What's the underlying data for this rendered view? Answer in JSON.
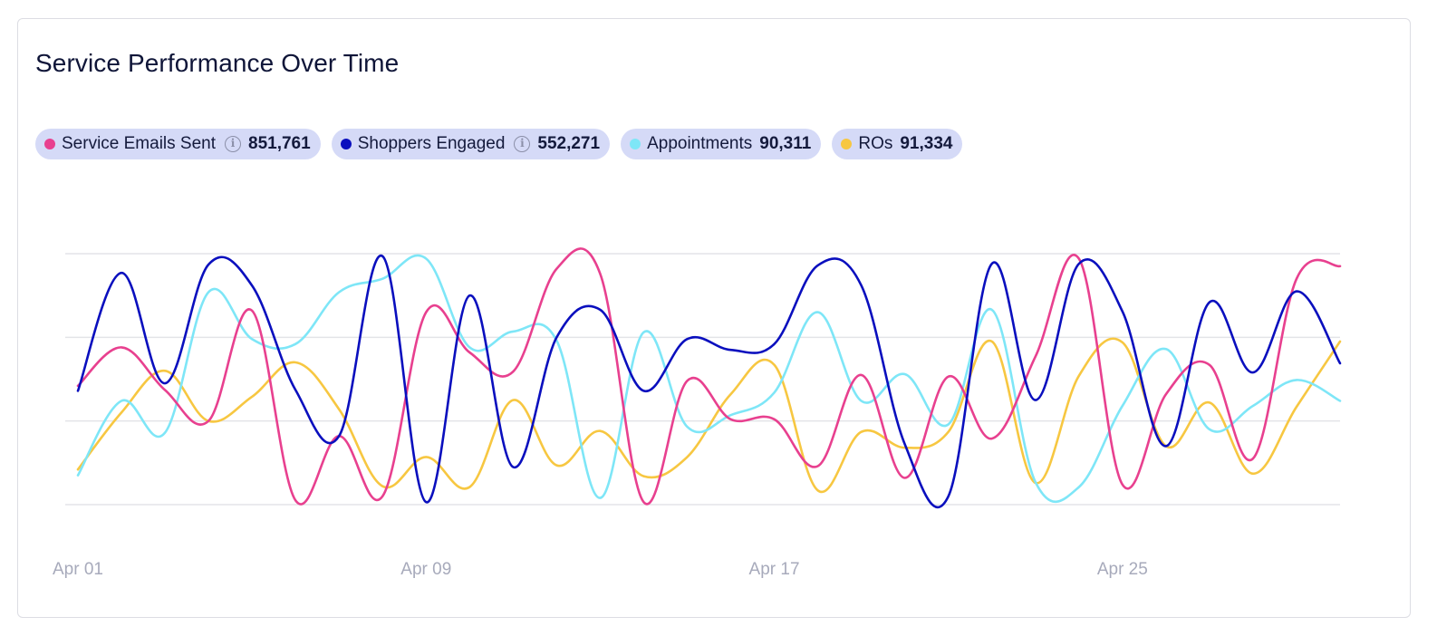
{
  "title": "Service Performance Over Time",
  "legend": [
    {
      "name": "Service Emails Sent",
      "value": "851,761",
      "color": "#e8408f",
      "info": true
    },
    {
      "name": "Shoppers Engaged",
      "value": "552,271",
      "color": "#0a0fbe",
      "info": true
    },
    {
      "name": "Appointments",
      "value": "90,311",
      "color": "#7ee6f7",
      "info": false
    },
    {
      "name": "ROs",
      "value": "91,334",
      "color": "#f7c741",
      "info": false
    }
  ],
  "chart_data": {
    "type": "line",
    "x": [
      "Apr 01",
      "Apr 02",
      "Apr 03",
      "Apr 04",
      "Apr 05",
      "Apr 06",
      "Apr 07",
      "Apr 08",
      "Apr 09",
      "Apr 10",
      "Apr 11",
      "Apr 12",
      "Apr 13",
      "Apr 14",
      "Apr 15",
      "Apr 16",
      "Apr 17",
      "Apr 18",
      "Apr 19",
      "Apr 20",
      "Apr 21",
      "Apr 22",
      "Apr 23",
      "Apr 24",
      "Apr 25",
      "Apr 26",
      "Apr 27",
      "Apr 28",
      "Apr 29",
      "Apr 30"
    ],
    "x_tick_labels": [
      "Apr 01",
      "Apr 09",
      "Apr 17",
      "Apr 25"
    ],
    "ylim": [
      0,
      3
    ],
    "grid": true,
    "series": [
      {
        "name": "Service Emails Sent",
        "color": "#e8408f",
        "values": [
          1.42,
          1.88,
          1.37,
          1.0,
          2.32,
          0.05,
          0.82,
          0.1,
          2.3,
          1.82,
          1.59,
          2.82,
          2.76,
          0.03,
          1.48,
          1.02,
          1.02,
          0.46,
          1.55,
          0.32,
          1.53,
          0.79,
          1.77,
          2.94,
          0.24,
          1.32,
          1.67,
          0.55,
          2.7,
          2.85
        ]
      },
      {
        "name": "Shoppers Engaged",
        "color": "#0a0fbe",
        "values": [
          1.36,
          2.77,
          1.45,
          2.87,
          2.62,
          1.37,
          0.82,
          2.97,
          0.03,
          2.5,
          0.45,
          2.0,
          2.33,
          1.36,
          1.98,
          1.85,
          1.92,
          2.86,
          2.62,
          0.72,
          0.1,
          2.88,
          1.25,
          2.88,
          2.31,
          0.7,
          2.42,
          1.58,
          2.55,
          1.69
        ]
      },
      {
        "name": "Appointments",
        "color": "#7ee6f7",
        "values": [
          0.35,
          1.24,
          0.86,
          2.54,
          1.98,
          1.92,
          2.54,
          2.7,
          2.94,
          1.88,
          2.07,
          1.96,
          0.08,
          2.06,
          0.93,
          1.07,
          1.34,
          2.3,
          1.24,
          1.56,
          0.96,
          2.33,
          0.27,
          0.21,
          1.18,
          1.86,
          0.9,
          1.18,
          1.49,
          1.24
        ]
      },
      {
        "name": "ROs",
        "color": "#f7c741",
        "values": [
          0.42,
          1.1,
          1.6,
          1.0,
          1.29,
          1.7,
          1.14,
          0.22,
          0.57,
          0.21,
          1.25,
          0.47,
          0.88,
          0.34,
          0.57,
          1.32,
          1.67,
          0.17,
          0.87,
          0.68,
          0.87,
          1.95,
          0.26,
          1.54,
          1.94,
          0.7,
          1.22,
          0.37,
          1.17,
          1.95
        ]
      }
    ]
  }
}
